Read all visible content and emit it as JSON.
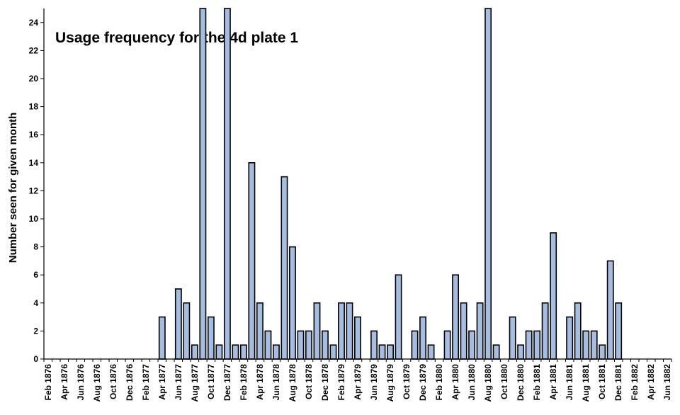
{
  "chart_data": {
    "type": "bar",
    "title": "Usage frequency for the 4d plate 1",
    "ylabel": "Number seen for given month",
    "xlabel": "",
    "ylim": [
      0,
      25
    ],
    "yticks": [
      0,
      2,
      4,
      6,
      8,
      10,
      12,
      14,
      16,
      18,
      20,
      22,
      24
    ],
    "grid": false,
    "legend": "none",
    "bar_color": "#a4bde0",
    "x_tick_labels": [
      "Feb 1876",
      "Apr 1876",
      "Jun 1876",
      "Aug 1876",
      "Oct 1876",
      "Dec 1876",
      "Feb 1877",
      "Apr 1877",
      "Jun 1877",
      "Aug 1877",
      "Oct 1877",
      "Dec 1877",
      "Feb 1878",
      "Apr 1878",
      "Jun 1878",
      "Aug 1878",
      "Oct 1878",
      "Dec 1878",
      "Feb 1879",
      "Apr 1879",
      "Jun 1879",
      "Aug 1879",
      "Oct 1879",
      "Dec 1879",
      "Feb 1880",
      "Apr 1880",
      "Jun 1880",
      "Aug 1880",
      "Oct 1880",
      "Dec 1880",
      "Feb 1881",
      "Apr 1881",
      "Jun 1881",
      "Aug 1881",
      "Oct 1881",
      "Dec 1881",
      "Feb 1882",
      "Apr 1882",
      "Jun 1882"
    ],
    "categories": [
      "Feb 1876",
      "Mar 1876",
      "Apr 1876",
      "May 1876",
      "Jun 1876",
      "Jul 1876",
      "Aug 1876",
      "Sep 1876",
      "Oct 1876",
      "Nov 1876",
      "Dec 1876",
      "Jan 1877",
      "Feb 1877",
      "Mar 1877",
      "Apr 1877",
      "May 1877",
      "Jun 1877",
      "Jul 1877",
      "Aug 1877",
      "Sep 1877",
      "Oct 1877",
      "Nov 1877",
      "Dec 1877",
      "Jan 1878",
      "Feb 1878",
      "Mar 1878",
      "Apr 1878",
      "May 1878",
      "Jun 1878",
      "Jul 1878",
      "Aug 1878",
      "Sep 1878",
      "Oct 1878",
      "Nov 1878",
      "Dec 1878",
      "Jan 1879",
      "Feb 1879",
      "Mar 1879",
      "Apr 1879",
      "May 1879",
      "Jun 1879",
      "Jul 1879",
      "Aug 1879",
      "Sep 1879",
      "Oct 1879",
      "Nov 1879",
      "Dec 1879",
      "Jan 1880",
      "Feb 1880",
      "Mar 1880",
      "Apr 1880",
      "May 1880",
      "Jun 1880",
      "Jul 1880",
      "Aug 1880",
      "Sep 1880",
      "Oct 1880",
      "Nov 1880",
      "Dec 1880",
      "Jan 1881",
      "Feb 1881",
      "Mar 1881",
      "Apr 1881",
      "May 1881",
      "Jun 1881",
      "Jul 1881",
      "Aug 1881",
      "Sep 1881",
      "Oct 1881",
      "Nov 1881",
      "Dec 1881",
      "Jan 1882",
      "Feb 1882",
      "Mar 1882",
      "Apr 1882",
      "May 1882",
      "Jun 1882"
    ],
    "values": [
      0,
      0,
      0,
      0,
      0,
      0,
      0,
      0,
      0,
      0,
      0,
      0,
      0,
      0,
      3,
      0,
      5,
      4,
      1,
      25,
      3,
      1,
      25,
      1,
      1,
      14,
      4,
      2,
      1,
      13,
      8,
      2,
      2,
      4,
      2,
      1,
      4,
      4,
      3,
      0,
      2,
      1,
      1,
      6,
      0,
      2,
      3,
      1,
      0,
      2,
      6,
      4,
      2,
      4,
      25,
      1,
      0,
      3,
      1,
      2,
      2,
      4,
      9,
      0,
      3,
      4,
      2,
      2,
      1,
      7,
      4,
      0,
      0,
      0,
      0,
      0,
      0
    ]
  }
}
